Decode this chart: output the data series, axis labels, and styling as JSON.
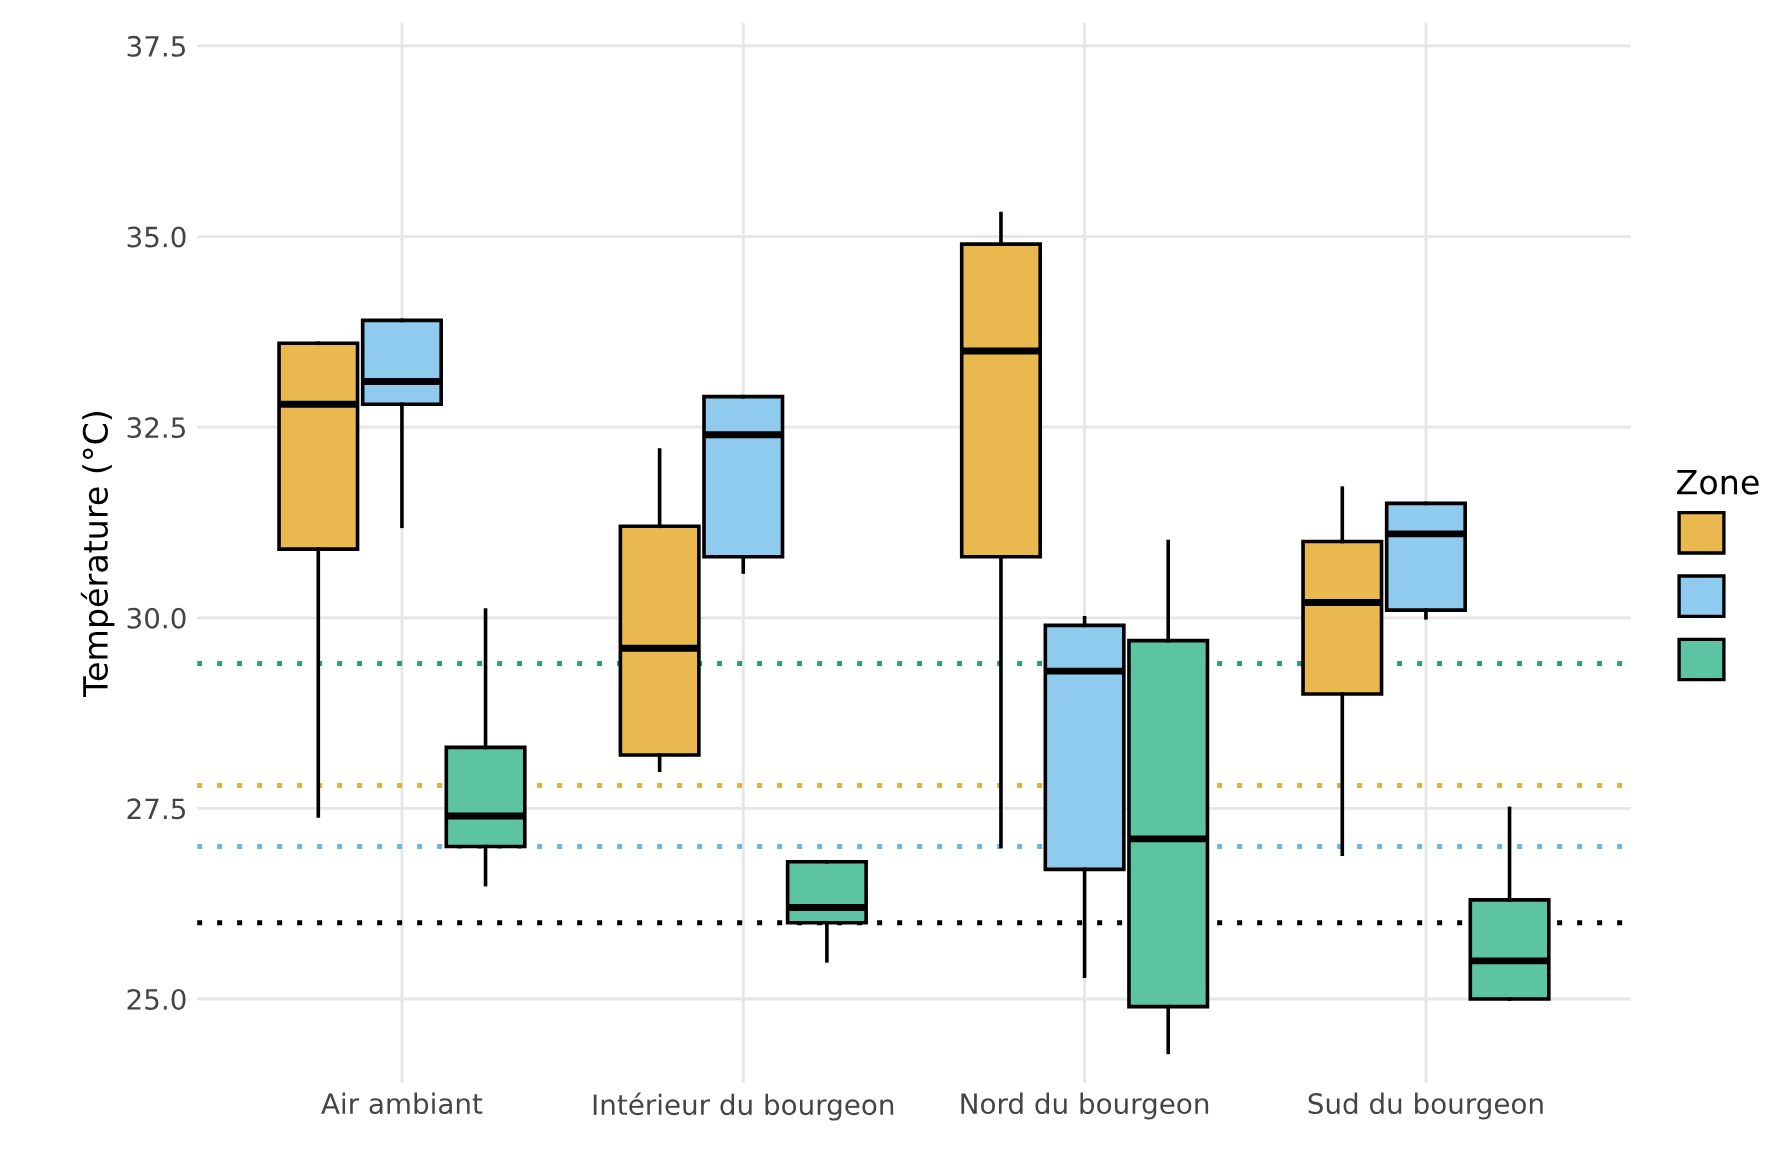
{
  "chart_data": {
    "type": "box",
    "ylabel": "Température (°C)",
    "legend_title": "Zone",
    "grid": true,
    "categories": [
      "Air ambiant",
      "Intérieur du bourgeon",
      "Nord du bourgeon",
      "Sud du bourgeon"
    ],
    "ylim": [
      23.9,
      37.8
    ],
    "yticks": [
      {
        "value": 25,
        "label": "25.0"
      },
      27.5,
      {
        "value": 30,
        "label": "30.0"
      },
      32.5,
      {
        "value": 35,
        "label": "35.0"
      },
      37.5
    ],
    "series": [
      {
        "color": "#e9b94f",
        "boxes": [
          {
            "low": 27.4,
            "q1": 30.9,
            "median": 32.8,
            "q3": 33.6,
            "high": 33.6
          },
          {
            "low": 28.0,
            "q1": 28.2,
            "median": 29.6,
            "q3": 31.2,
            "high": 32.2
          },
          {
            "low": 27.0,
            "q1": 30.8,
            "median": 33.5,
            "q3": 34.9,
            "high": 35.3
          },
          {
            "low": 26.9,
            "q1": 29.0,
            "median": 30.2,
            "q3": 31.0,
            "high": 31.7
          }
        ]
      },
      {
        "color": "#8ecbef",
        "boxes": [
          {
            "low": 31.2,
            "q1": 32.8,
            "median": 33.1,
            "q3": 33.9,
            "high": 33.9
          },
          {
            "low": 30.6,
            "q1": 30.8,
            "median": 32.4,
            "q3": 32.9,
            "high": 32.9
          },
          {
            "low": 25.3,
            "q1": 26.7,
            "median": 29.3,
            "q3": 29.9,
            "high": 30.0
          },
          {
            "low": 30.0,
            "q1": 30.1,
            "median": 31.1,
            "q3": 31.5,
            "high": 31.5
          }
        ]
      },
      {
        "color": "#5cc3a3",
        "boxes": [
          {
            "low": 26.5,
            "q1": 27.0,
            "median": 27.4,
            "q3": 28.3,
            "high": 30.1
          },
          {
            "low": 25.5,
            "q1": 26.0,
            "median": 26.2,
            "q3": 26.8,
            "high": 26.8
          },
          {
            "low": 24.3,
            "q1": 24.9,
            "median": 27.1,
            "q3": 29.7,
            "high": 31.0
          },
          {
            "low": 25.0,
            "q1": 25.0,
            "median": 25.5,
            "q3": 26.3,
            "high": 27.5
          }
        ]
      }
    ],
    "ref_lines": [
      {
        "axis": "y",
        "value": 29.4,
        "color": "#2a9d7a",
        "line_style": "dotted"
      },
      {
        "axis": "y",
        "value": 27.8,
        "color": "#e0b040",
        "line_style": "dotted"
      },
      {
        "axis": "y",
        "value": 27.0,
        "color": "#6fb7e0",
        "line_style": "dotted"
      },
      {
        "axis": "y",
        "value": 26.0,
        "color": "#000000",
        "line_style": "dotted"
      }
    ]
  }
}
